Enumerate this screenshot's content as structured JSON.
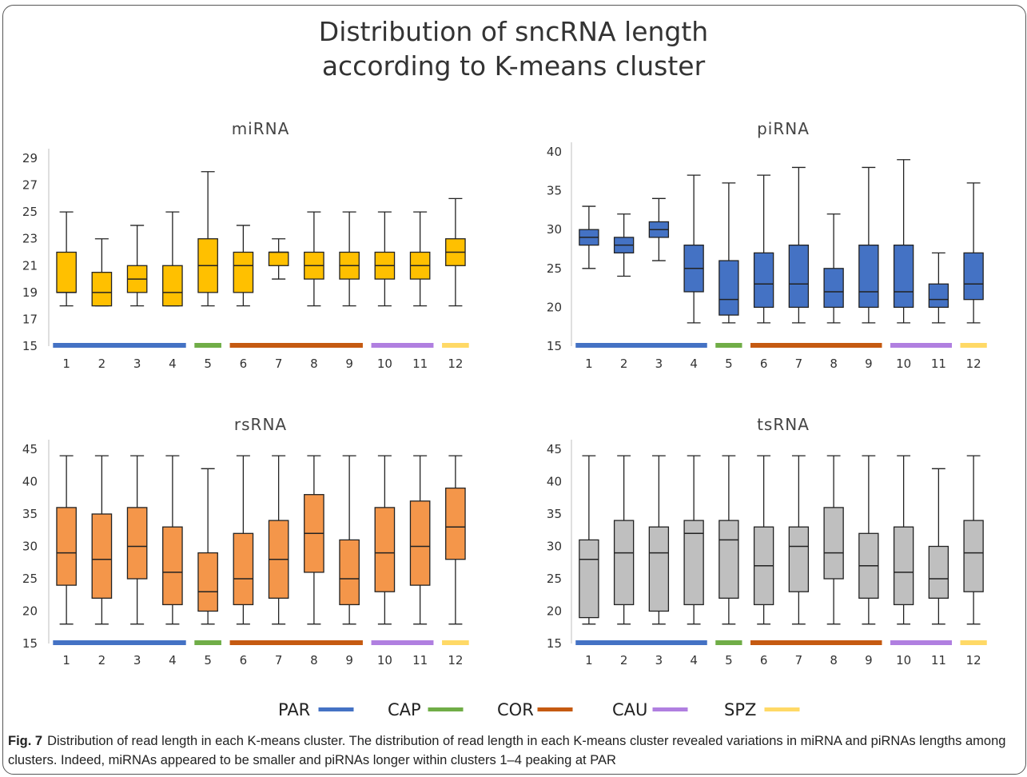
{
  "title_lines": [
    "Distribution of sncRNA length",
    "according to K-means cluster"
  ],
  "chart_data": [
    {
      "type": "box",
      "title": "miRNA",
      "categories": [
        "1",
        "2",
        "3",
        "4",
        "5",
        "6",
        "7",
        "8",
        "9",
        "10",
        "11",
        "12"
      ],
      "ylim": [
        15,
        29
      ],
      "yticks": [
        15,
        17,
        19,
        21,
        23,
        25,
        27,
        29
      ],
      "color": "#FFC000",
      "boxes": [
        {
          "min": 18,
          "q1": 19,
          "median": 19,
          "q3": 22,
          "max": 25
        },
        {
          "min": 18,
          "q1": 18,
          "median": 19,
          "q3": 20.5,
          "max": 23
        },
        {
          "min": 18,
          "q1": 19,
          "median": 20,
          "q3": 21,
          "max": 24
        },
        {
          "min": 18,
          "q1": 18,
          "median": 19,
          "q3": 21,
          "max": 25
        },
        {
          "min": 18,
          "q1": 19,
          "median": 21,
          "q3": 23,
          "max": 28
        },
        {
          "min": 18,
          "q1": 19,
          "median": 21,
          "q3": 22,
          "max": 24
        },
        {
          "min": 20,
          "q1": 21,
          "median": 22,
          "q3": 22,
          "max": 23
        },
        {
          "min": 18,
          "q1": 20,
          "median": 21,
          "q3": 22,
          "max": 25
        },
        {
          "min": 18,
          "q1": 20,
          "median": 21,
          "q3": 22,
          "max": 25
        },
        {
          "min": 18,
          "q1": 20,
          "median": 21,
          "q3": 22,
          "max": 25
        },
        {
          "min": 18,
          "q1": 20,
          "median": 21,
          "q3": 22,
          "max": 25
        },
        {
          "min": 18,
          "q1": 21,
          "median": 22,
          "q3": 23,
          "max": 26
        }
      ]
    },
    {
      "type": "box",
      "title": "piRNA",
      "categories": [
        "1",
        "2",
        "3",
        "4",
        "5",
        "6",
        "7",
        "8",
        "9",
        "10",
        "11",
        "12"
      ],
      "ylim": [
        15,
        40
      ],
      "yticks": [
        15,
        20,
        25,
        30,
        35,
        40
      ],
      "color": "#4472C4",
      "boxes": [
        {
          "min": 25,
          "q1": 28,
          "median": 29,
          "q3": 30,
          "max": 33
        },
        {
          "min": 24,
          "q1": 27,
          "median": 28,
          "q3": 29,
          "max": 32
        },
        {
          "min": 26,
          "q1": 29,
          "median": 30,
          "q3": 31,
          "max": 34
        },
        {
          "min": 18,
          "q1": 22,
          "median": 25,
          "q3": 28,
          "max": 37
        },
        {
          "min": 18,
          "q1": 19,
          "median": 21,
          "q3": 26,
          "max": 36
        },
        {
          "min": 18,
          "q1": 20,
          "median": 23,
          "q3": 27,
          "max": 37
        },
        {
          "min": 18,
          "q1": 20,
          "median": 23,
          "q3": 28,
          "max": 38
        },
        {
          "min": 18,
          "q1": 20,
          "median": 22,
          "q3": 25,
          "max": 32
        },
        {
          "min": 18,
          "q1": 20,
          "median": 22,
          "q3": 28,
          "max": 38
        },
        {
          "min": 18,
          "q1": 20,
          "median": 22,
          "q3": 28,
          "max": 39
        },
        {
          "min": 18,
          "q1": 20,
          "median": 21,
          "q3": 23,
          "max": 27
        },
        {
          "min": 18,
          "q1": 21,
          "median": 23,
          "q3": 27,
          "max": 36
        }
      ]
    },
    {
      "type": "box",
      "title": "rsRNA",
      "categories": [
        "1",
        "2",
        "3",
        "4",
        "5",
        "6",
        "7",
        "8",
        "9",
        "10",
        "11",
        "12"
      ],
      "ylim": [
        15,
        45
      ],
      "yticks": [
        15,
        20,
        25,
        30,
        35,
        40,
        45
      ],
      "color": "#F4964A",
      "boxes": [
        {
          "min": 18,
          "q1": 24,
          "median": 29,
          "q3": 36,
          "max": 44
        },
        {
          "min": 18,
          "q1": 22,
          "median": 28,
          "q3": 35,
          "max": 44
        },
        {
          "min": 18,
          "q1": 25,
          "median": 30,
          "q3": 36,
          "max": 44
        },
        {
          "min": 18,
          "q1": 21,
          "median": 26,
          "q3": 33,
          "max": 44
        },
        {
          "min": 18,
          "q1": 20,
          "median": 23,
          "q3": 29,
          "max": 42
        },
        {
          "min": 18,
          "q1": 21,
          "median": 25,
          "q3": 32,
          "max": 44
        },
        {
          "min": 18,
          "q1": 22,
          "median": 28,
          "q3": 34,
          "max": 44
        },
        {
          "min": 18,
          "q1": 26,
          "median": 32,
          "q3": 38,
          "max": 44
        },
        {
          "min": 18,
          "q1": 21,
          "median": 25,
          "q3": 31,
          "max": 44
        },
        {
          "min": 18,
          "q1": 23,
          "median": 29,
          "q3": 36,
          "max": 44
        },
        {
          "min": 18,
          "q1": 24,
          "median": 30,
          "q3": 37,
          "max": 44
        },
        {
          "min": 18,
          "q1": 28,
          "median": 33,
          "q3": 39,
          "max": 44
        }
      ]
    },
    {
      "type": "box",
      "title": "tsRNA",
      "categories": [
        "1",
        "2",
        "3",
        "4",
        "5",
        "6",
        "7",
        "8",
        "9",
        "10",
        "11",
        "12"
      ],
      "ylim": [
        15,
        45
      ],
      "yticks": [
        15,
        20,
        25,
        30,
        35,
        40,
        45
      ],
      "color": "#BFBFBF",
      "boxes": [
        {
          "min": 18,
          "q1": 19,
          "median": 28,
          "q3": 31,
          "max": 44
        },
        {
          "min": 18,
          "q1": 21,
          "median": 29,
          "q3": 34,
          "max": 44
        },
        {
          "min": 18,
          "q1": 20,
          "median": 29,
          "q3": 33,
          "max": 44
        },
        {
          "min": 18,
          "q1": 21,
          "median": 32,
          "q3": 34,
          "max": 44
        },
        {
          "min": 18,
          "q1": 22,
          "median": 31,
          "q3": 34,
          "max": 44
        },
        {
          "min": 18,
          "q1": 21,
          "median": 27,
          "q3": 33,
          "max": 44
        },
        {
          "min": 18,
          "q1": 23,
          "median": 30,
          "q3": 33,
          "max": 44
        },
        {
          "min": 18,
          "q1": 25,
          "median": 29,
          "q3": 36,
          "max": 44
        },
        {
          "min": 18,
          "q1": 22,
          "median": 27,
          "q3": 32,
          "max": 44
        },
        {
          "min": 18,
          "q1": 21,
          "median": 26,
          "q3": 33,
          "max": 44
        },
        {
          "min": 18,
          "q1": 22,
          "median": 25,
          "q3": 30,
          "max": 42
        },
        {
          "min": 18,
          "q1": 23,
          "median": 29,
          "q3": 34,
          "max": 44
        }
      ]
    }
  ],
  "groups": [
    {
      "name": "PAR",
      "color": "#4472C4",
      "start": 1,
      "end": 4
    },
    {
      "name": "CAP",
      "color": "#70AD47",
      "start": 5,
      "end": 5
    },
    {
      "name": "COR",
      "color": "#C55A11",
      "start": 6,
      "end": 9
    },
    {
      "name": "CAU",
      "color": "#B07FE0",
      "start": 10,
      "end": 11
    },
    {
      "name": "SPZ",
      "color": "#FFD966",
      "start": 12,
      "end": 12
    }
  ],
  "caption": {
    "label": "Fig. 7",
    "text": "Distribution of read length in each K-means cluster. The distribution of read length in each K-means cluster revealed variations in miRNA and piRNAs lengths among clusters. Indeed, miRNAs appeared to be smaller and piRNAs longer within clusters 1–4 peaking at PAR"
  }
}
